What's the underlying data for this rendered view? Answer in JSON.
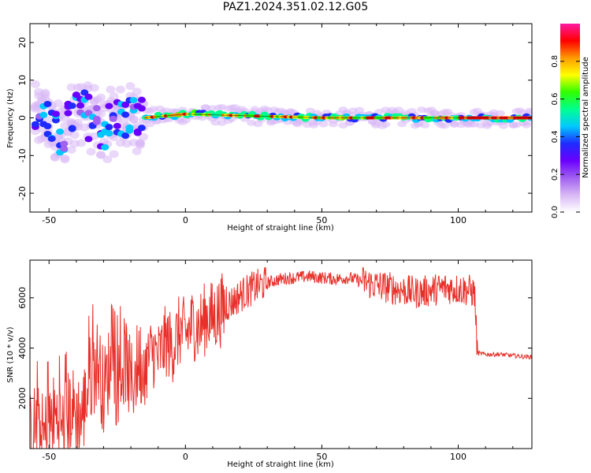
{
  "title": "PAZ1.2024.351.02.12.G05",
  "colors": {
    "snr_line": "#e8302a",
    "spectrogram_scale": [
      "#ffffff",
      "#d8b8f5",
      "#a060f0",
      "#6a00ff",
      "#1f2bff",
      "#00c8ff",
      "#00ff90",
      "#30ff00",
      "#ffff00",
      "#ff9a00",
      "#ff0000",
      "#ff1aa0"
    ]
  },
  "chart_data": [
    {
      "type": "heatmap",
      "description_of_axes": "spectrogram",
      "xlabel": "Height of straight line (km)",
      "ylabel": "Frequency (Hz)",
      "xlim": [
        -57,
        127
      ],
      "ylim": [
        -25,
        25
      ],
      "xticks": [
        -50,
        0,
        50,
        100
      ],
      "yticks": [
        -20,
        -10,
        0,
        10,
        20
      ],
      "colorbar": {
        "label": "Normalized spectral amplitude",
        "range": [
          0,
          1
        ],
        "ticks": [
          "0.0",
          "0.2",
          "0.4",
          "0.6",
          "0.8"
        ],
        "tick_values": [
          0.0,
          0.2,
          0.4,
          0.6,
          0.8
        ]
      },
      "ridge": [
        {
          "x": -50,
          "y": -4
        },
        {
          "x": -45,
          "y": -5
        },
        {
          "x": -40,
          "y": 3
        },
        {
          "x": -35,
          "y": 0
        },
        {
          "x": -30,
          "y": -3
        },
        {
          "x": -25,
          "y": 0
        },
        {
          "x": -15,
          "y": 0
        },
        {
          "x": 0,
          "y": 1
        },
        {
          "x": 50,
          "y": 0
        },
        {
          "x": 100,
          "y": 0
        },
        {
          "x": 127,
          "y": 0
        }
      ]
    },
    {
      "type": "line",
      "xlabel": "Height of straight line (km)",
      "ylabel": "SNR (10 * v/v)",
      "xlim": [
        -57,
        127
      ],
      "ylim": [
        0,
        7500
      ],
      "xticks": [
        -50,
        0,
        50,
        100
      ],
      "yticks": [
        2000,
        4000,
        6000
      ],
      "series": [
        {
          "points": [
            [
              -57,
              500
            ],
            [
              -55,
              900
            ],
            [
              -52,
              400
            ],
            [
              -48,
              1300
            ],
            [
              -45,
              800
            ],
            [
              -42,
              1600
            ],
            [
              -38,
              1200
            ],
            [
              -35,
              2800
            ],
            [
              -32,
              3500
            ],
            [
              -30,
              2200
            ],
            [
              -28,
              3200
            ],
            [
              -25,
              2600
            ],
            [
              -22,
              3600
            ],
            [
              -20,
              2500
            ],
            [
              -17,
              3500
            ],
            [
              -15,
              3200
            ],
            [
              -12,
              3900
            ],
            [
              -10,
              3600
            ],
            [
              -7,
              4300
            ],
            [
              -5,
              4000
            ],
            [
              -2,
              4700
            ],
            [
              0,
              4500
            ],
            [
              3,
              5000
            ],
            [
              5,
              4800
            ],
            [
              8,
              5300
            ],
            [
              10,
              5200
            ],
            [
              13,
              5500
            ],
            [
              15,
              5700
            ],
            [
              18,
              5900
            ],
            [
              20,
              6100
            ],
            [
              25,
              6400
            ],
            [
              30,
              6600
            ],
            [
              35,
              6750
            ],
            [
              40,
              6800
            ],
            [
              45,
              6850
            ],
            [
              50,
              6800
            ],
            [
              55,
              6750
            ],
            [
              60,
              6800
            ],
            [
              65,
              6650
            ],
            [
              70,
              6500
            ],
            [
              75,
              6400
            ],
            [
              80,
              6300
            ],
            [
              85,
              6200
            ],
            [
              90,
              6300
            ],
            [
              95,
              6400
            ],
            [
              100,
              6350
            ],
            [
              104,
              6300
            ],
            [
              106,
              6200
            ],
            [
              107,
              3800
            ],
            [
              110,
              3750
            ],
            [
              115,
              3750
            ],
            [
              120,
              3700
            ],
            [
              125,
              3650
            ],
            [
              127,
              3650
            ]
          ]
        }
      ]
    }
  ]
}
